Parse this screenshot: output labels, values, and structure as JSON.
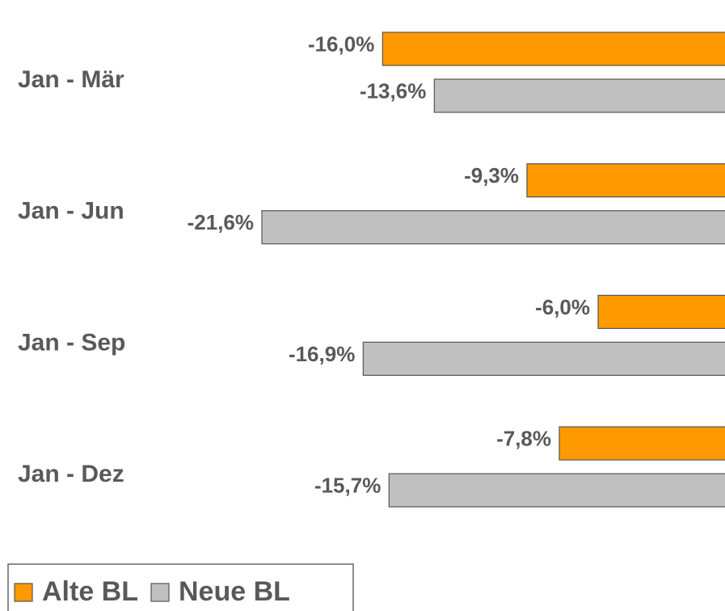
{
  "chart_data": {
    "type": "bar",
    "orientation": "horizontal",
    "categories": [
      "Jan - Mär",
      "Jan - Jun",
      "Jan - Sep",
      "Jan - Dez"
    ],
    "series": [
      {
        "name": "Alte BL",
        "color": "#FF9900",
        "values": [
          -16.0,
          -9.3,
          -6.0,
          -7.8
        ],
        "value_labels": [
          "-16,0%",
          "-9,3%",
          "-6,0%",
          "-7,8%"
        ]
      },
      {
        "name": "Neue BL",
        "color": "#C0C0C0",
        "values": [
          -13.6,
          -21.6,
          -16.9,
          -15.7
        ],
        "value_labels": [
          "-13,6%",
          "-21,6%",
          "-16,9%",
          "-15,7%"
        ]
      }
    ],
    "legend": "bottom-left"
  }
}
